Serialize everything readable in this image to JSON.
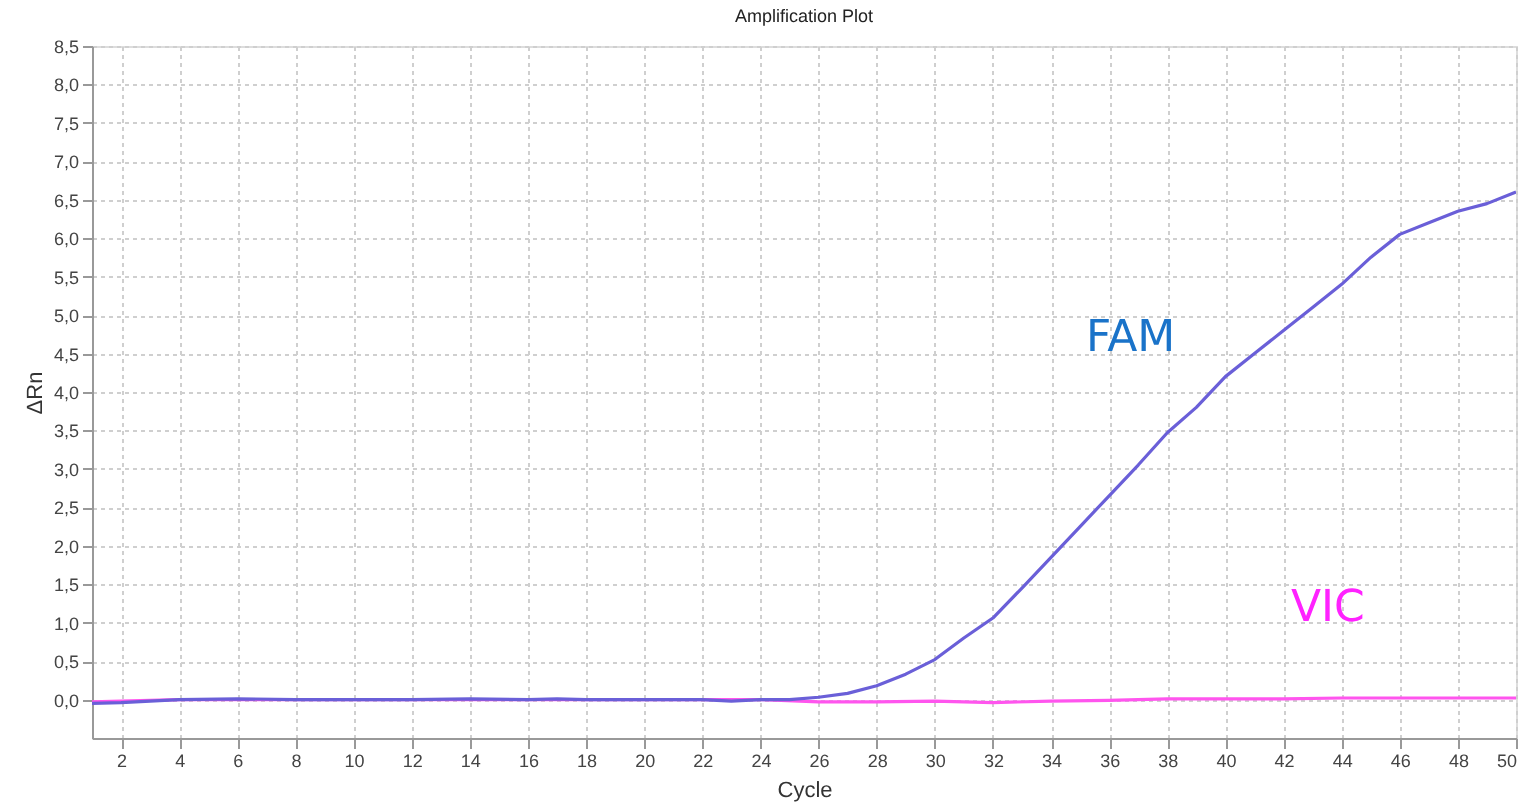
{
  "chart_data": {
    "type": "line",
    "title": "Amplification Plot",
    "xlabel": "Cycle",
    "ylabel": "ΔRn",
    "xlim": [
      1,
      50
    ],
    "xticks": [
      2,
      4,
      6,
      8,
      10,
      12,
      14,
      16,
      18,
      20,
      22,
      24,
      26,
      28,
      30,
      32,
      34,
      36,
      38,
      40,
      42,
      44,
      46,
      48,
      50
    ],
    "ylim": [
      -0.5,
      8.5
    ],
    "yticks": [
      {
        "value": 0,
        "label": "0,0"
      },
      {
        "value": 0.5,
        "label": "0,5"
      },
      {
        "value": 1,
        "label": "1,0"
      },
      {
        "value": 1.5,
        "label": "1,5"
      },
      {
        "value": 2,
        "label": "2,0"
      },
      {
        "value": 2.5,
        "label": "2,5"
      },
      {
        "value": 3,
        "label": "3,0"
      },
      {
        "value": 3.5,
        "label": "3,5"
      },
      {
        "value": 4,
        "label": "4,0"
      },
      {
        "value": 4.5,
        "label": "4,5"
      },
      {
        "value": 5,
        "label": "5,0"
      },
      {
        "value": 5.5,
        "label": "5,5"
      },
      {
        "value": 6,
        "label": "6,0"
      },
      {
        "value": 6.5,
        "label": "6,5"
      },
      {
        "value": 7,
        "label": "7,0"
      },
      {
        "value": 7.5,
        "label": "7,5"
      },
      {
        "value": 8,
        "label": "8,0"
      },
      {
        "value": 8.5,
        "label": "8,5"
      }
    ],
    "grid": true,
    "legend": false,
    "marker": "none",
    "line_style": "solid",
    "series": [
      {
        "name": "VIC",
        "color": "#ff55ee",
        "x": [
          1,
          4,
          8,
          12,
          16,
          20,
          24,
          26,
          28,
          30,
          32,
          34,
          36,
          38,
          40,
          42,
          44,
          46,
          48,
          50
        ],
        "values": [
          -0.03,
          0,
          0,
          0,
          0,
          0,
          0,
          -0.03,
          -0.03,
          -0.02,
          -0.04,
          -0.02,
          -0.01,
          0.01,
          0.01,
          0.01,
          0.02,
          0.02,
          0.02,
          0.02
        ]
      },
      {
        "name": "FAM",
        "color": "#6a5fd8",
        "x": [
          1,
          2,
          3,
          4,
          6,
          8,
          10,
          12,
          14,
          16,
          17,
          18,
          20,
          22,
          23,
          24,
          25,
          26,
          27,
          28,
          29,
          30,
          31,
          32,
          33,
          34,
          35,
          36,
          37,
          38,
          39,
          40,
          41,
          42,
          43,
          44,
          45,
          46,
          47,
          48,
          49,
          50
        ],
        "values": [
          -0.05,
          -0.04,
          -0.02,
          0,
          0.01,
          0,
          0,
          0,
          0.01,
          0,
          0.01,
          0,
          0,
          0,
          -0.02,
          0,
          0,
          0.03,
          0.08,
          0.18,
          0.33,
          0.52,
          0.8,
          1.06,
          1.45,
          1.85,
          2.25,
          2.65,
          3.05,
          3.47,
          3.8,
          4.2,
          4.5,
          4.8,
          5.1,
          5.4,
          5.75,
          6.05,
          6.2,
          6.35,
          6.45,
          6.6
        ]
      }
    ]
  }
}
